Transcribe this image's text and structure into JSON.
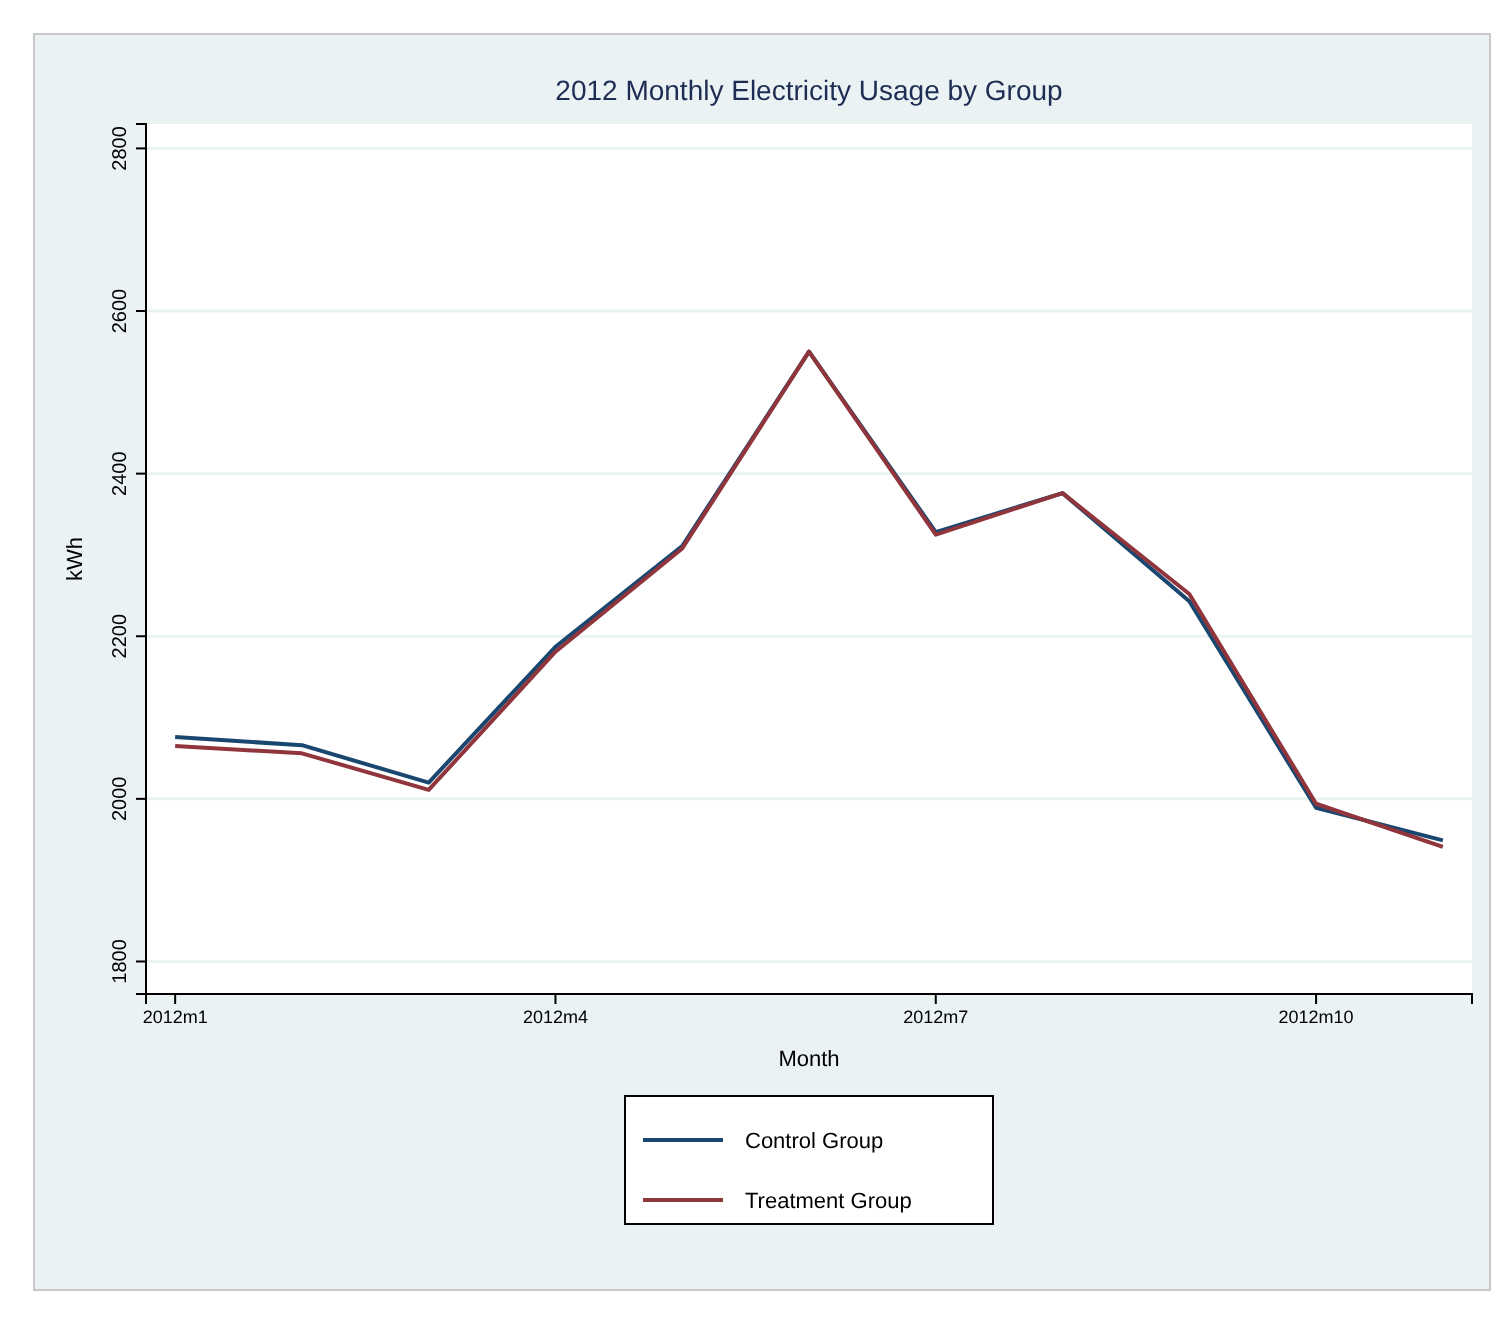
{
  "chart_data": {
    "type": "line",
    "title": "2012 Monthly Electricity Usage by Group",
    "xlabel": "Month",
    "ylabel": "kWh",
    "categories": [
      "2012m1",
      null,
      null,
      "2012m4",
      null,
      null,
      "2012m7",
      null,
      null,
      "2012m10",
      null
    ],
    "ylim": [
      1760,
      2830
    ],
    "yticks": [
      1800,
      2000,
      2200,
      2400,
      2600,
      2800
    ],
    "grid": "y",
    "legend": "bottom",
    "marker": "none",
    "line_style": "solid",
    "series": [
      {
        "name": "Control Group",
        "color": "#1a476f",
        "values": [
          2076,
          2066,
          2020,
          2187,
          2311,
          2550,
          2328,
          2376,
          2243,
          1989,
          1949
        ]
      },
      {
        "name": "Treatment Group",
        "color": "#90353b",
        "values": [
          2065,
          2056,
          2011,
          2181,
          2308,
          2550,
          2325,
          2376,
          2252,
          1994,
          1941
        ]
      }
    ]
  }
}
